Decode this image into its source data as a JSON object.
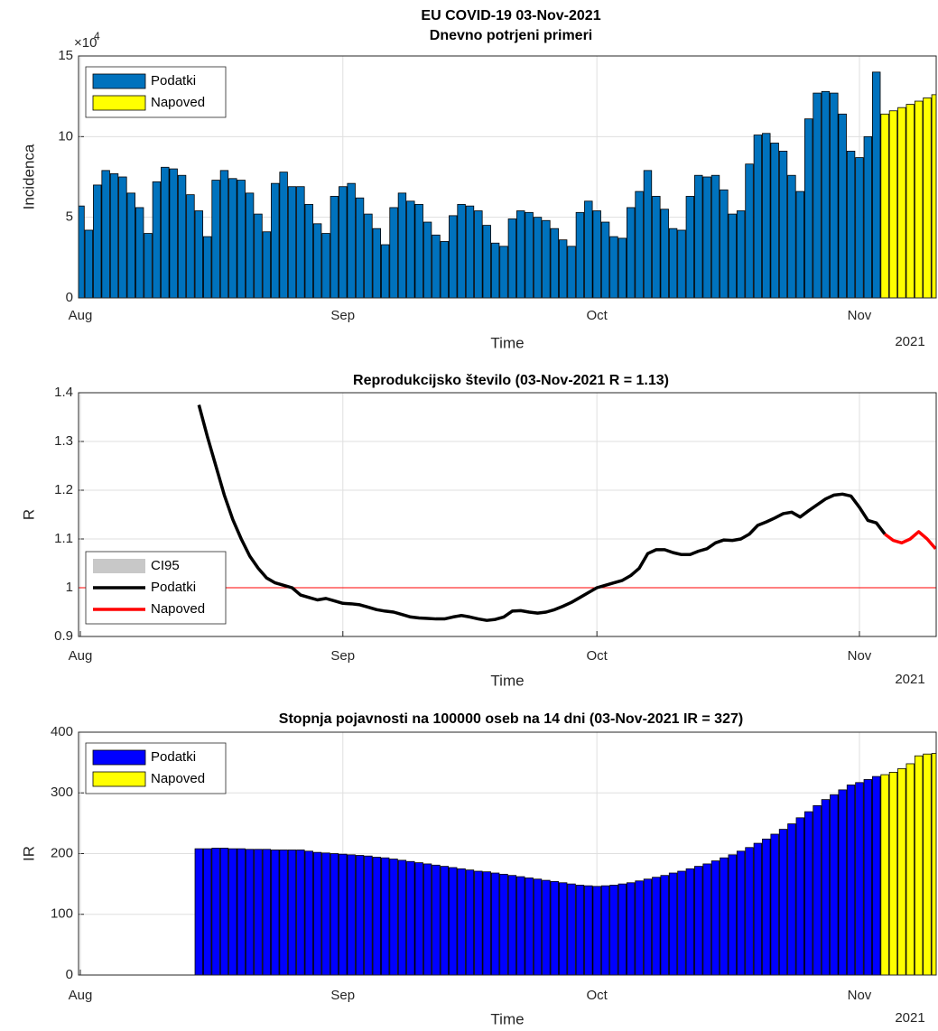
{
  "chart_data": [
    {
      "type": "bar",
      "title": "EU COVID-19 03-Nov-2021",
      "subtitle": "Dnevno potrjeni primeri",
      "xlabel": "Time",
      "ylabel": "Incidenca",
      "x_year": "2021",
      "y_exponent_base": "×10",
      "y_exponent": "4",
      "categories": [
        "Aug",
        null,
        null,
        null,
        null,
        null,
        null,
        null,
        null,
        null,
        null,
        null,
        null,
        null,
        null,
        null,
        null,
        null,
        null,
        null,
        null,
        null,
        null,
        null,
        null,
        null,
        null,
        null,
        null,
        null,
        null,
        "Sep",
        null,
        null,
        null,
        null,
        null,
        null,
        null,
        null,
        null,
        null,
        null,
        null,
        null,
        null,
        null,
        null,
        null,
        null,
        null,
        null,
        null,
        null,
        null,
        null,
        null,
        null,
        null,
        null,
        null,
        "Oct",
        null,
        null,
        null,
        null,
        null,
        null,
        null,
        null,
        null,
        null,
        null,
        null,
        null,
        null,
        null,
        null,
        null,
        null,
        null,
        null,
        null,
        null,
        null,
        null,
        null,
        null,
        null,
        null,
        null,
        null,
        "Nov",
        null,
        null,
        null,
        null,
        null,
        null,
        null,
        null,
        null
      ],
      "series": [
        {
          "name": "Podatki",
          "color": "#0072BD",
          "values": [
            5.7,
            4.2,
            7.0,
            7.9,
            7.7,
            7.5,
            6.5,
            5.6,
            4.0,
            7.2,
            8.1,
            8.0,
            7.6,
            6.4,
            5.4,
            3.8,
            7.3,
            7.9,
            7.4,
            7.3,
            6.5,
            5.2,
            4.1,
            7.1,
            7.8,
            6.9,
            6.9,
            5.8,
            4.6,
            4.0,
            6.3,
            6.9,
            7.1,
            6.2,
            5.2,
            4.3,
            3.3,
            5.6,
            6.5,
            6.0,
            5.8,
            4.7,
            3.9,
            3.5,
            5.1,
            5.8,
            5.7,
            5.4,
            4.5,
            3.4,
            3.2,
            4.9,
            5.4,
            5.3,
            5.0,
            4.8,
            4.3,
            3.6,
            3.2,
            5.3,
            6.0,
            5.4,
            4.7,
            3.8,
            3.7,
            5.6,
            6.6,
            7.9,
            6.3,
            5.5,
            4.3,
            4.2,
            6.3,
            7.6,
            7.5,
            7.6,
            6.7,
            5.2,
            5.4,
            8.3,
            10.1,
            10.2,
            9.6,
            9.1,
            7.6,
            6.6,
            11.1,
            12.7,
            12.8,
            12.7,
            11.4,
            9.1,
            8.7,
            10.0,
            14.0,
            null,
            null,
            null,
            null,
            null,
            null,
            null
          ]
        },
        {
          "name": "Napoved",
          "color": "#FFFF00",
          "values": [
            null,
            null,
            null,
            null,
            null,
            null,
            null,
            null,
            null,
            null,
            null,
            null,
            null,
            null,
            null,
            null,
            null,
            null,
            null,
            null,
            null,
            null,
            null,
            null,
            null,
            null,
            null,
            null,
            null,
            null,
            null,
            null,
            null,
            null,
            null,
            null,
            null,
            null,
            null,
            null,
            null,
            null,
            null,
            null,
            null,
            null,
            null,
            null,
            null,
            null,
            null,
            null,
            null,
            null,
            null,
            null,
            null,
            null,
            null,
            null,
            null,
            null,
            null,
            null,
            null,
            null,
            null,
            null,
            null,
            null,
            null,
            null,
            null,
            null,
            null,
            null,
            null,
            null,
            null,
            null,
            null,
            null,
            null,
            null,
            null,
            null,
            null,
            null,
            null,
            null,
            null,
            null,
            null,
            null,
            null,
            11.4,
            11.6,
            11.8,
            12.0,
            12.2,
            12.4,
            12.6
          ]
        }
      ],
      "ylim": [
        0,
        15
      ],
      "yticks": [
        0,
        5,
        10,
        15
      ],
      "grid": true,
      "legend": "northwest"
    },
    {
      "type": "line",
      "title": "Reprodukcijsko število (03-Nov-2021 R = 1.13)",
      "xlabel": "Time",
      "ylabel": "R",
      "x_year": "2021",
      "categories": [
        "Aug",
        null,
        null,
        null,
        null,
        null,
        null,
        null,
        null,
        null,
        null,
        null,
        null,
        null,
        null,
        null,
        null,
        null,
        null,
        null,
        null,
        null,
        null,
        null,
        null,
        null,
        null,
        null,
        null,
        null,
        null,
        "Sep",
        null,
        null,
        null,
        null,
        null,
        null,
        null,
        null,
        null,
        null,
        null,
        null,
        null,
        null,
        null,
        null,
        null,
        null,
        null,
        null,
        null,
        null,
        null,
        null,
        null,
        null,
        null,
        null,
        null,
        "Oct",
        null,
        null,
        null,
        null,
        null,
        null,
        null,
        null,
        null,
        null,
        null,
        null,
        null,
        null,
        null,
        null,
        null,
        null,
        null,
        null,
        null,
        null,
        null,
        null,
        null,
        null,
        null,
        null,
        null,
        null,
        "Nov",
        null,
        null,
        null,
        null,
        null,
        null,
        null,
        null,
        null
      ],
      "series": [
        {
          "name": "CI95",
          "color": "#C8C8C8",
          "style": "band"
        },
        {
          "name": "Podatki",
          "color": "#000000",
          "style": "line",
          "values": [
            null,
            null,
            null,
            null,
            null,
            null,
            null,
            null,
            null,
            null,
            null,
            null,
            null,
            null,
            1.375,
            1.31,
            1.25,
            1.19,
            1.14,
            1.1,
            1.065,
            1.04,
            1.02,
            1.01,
            1.005,
            1.0,
            0.985,
            0.98,
            0.975,
            0.978,
            0.973,
            0.968,
            0.967,
            0.965,
            0.96,
            0.955,
            0.952,
            0.95,
            0.945,
            0.94,
            0.938,
            0.937,
            0.936,
            0.936,
            0.94,
            0.943,
            0.94,
            0.936,
            0.933,
            0.935,
            0.94,
            0.952,
            0.953,
            0.95,
            0.948,
            0.95,
            0.955,
            0.962,
            0.97,
            0.98,
            0.99,
            1.0,
            1.005,
            1.01,
            1.015,
            1.025,
            1.04,
            1.07,
            1.078,
            1.078,
            1.072,
            1.068,
            1.068,
            1.075,
            1.08,
            1.092,
            1.098,
            1.097,
            1.1,
            1.11,
            1.128,
            1.135,
            1.143,
            1.152,
            1.155,
            1.145,
            1.158,
            1.17,
            1.182,
            1.19,
            1.192,
            1.188,
            1.165,
            1.138,
            1.133,
            1.11,
            null,
            null,
            null,
            null,
            null,
            null
          ]
        },
        {
          "name": "Napoved",
          "color": "#FF0000",
          "style": "line",
          "values": [
            null,
            null,
            null,
            null,
            null,
            null,
            null,
            null,
            null,
            null,
            null,
            null,
            null,
            null,
            null,
            null,
            null,
            null,
            null,
            null,
            null,
            null,
            null,
            null,
            null,
            null,
            null,
            null,
            null,
            null,
            null,
            null,
            null,
            null,
            null,
            null,
            null,
            null,
            null,
            null,
            null,
            null,
            null,
            null,
            null,
            null,
            null,
            null,
            null,
            null,
            null,
            null,
            null,
            null,
            null,
            null,
            null,
            null,
            null,
            null,
            null,
            null,
            null,
            null,
            null,
            null,
            null,
            null,
            null,
            null,
            null,
            null,
            null,
            null,
            null,
            null,
            null,
            null,
            null,
            null,
            null,
            null,
            null,
            null,
            null,
            null,
            null,
            null,
            null,
            null,
            null,
            null,
            null,
            null,
            null,
            1.11,
            1.097,
            1.092,
            1.1,
            1.115,
            1.1,
            1.08
          ]
        }
      ],
      "ref_line": {
        "value": 1,
        "color": "#FF0000"
      },
      "ylim": [
        0.9,
        1.4
      ],
      "yticks": [
        0.9,
        1,
        1.1,
        1.2,
        1.3,
        1.4
      ],
      "grid": true,
      "legend": "southwest"
    },
    {
      "type": "bar",
      "title": "Stopnja pojavnosti na 100000 oseb na 14 dni (03-Nov-2021 IR = 327)",
      "xlabel": "Time",
      "ylabel": "IR",
      "x_year": "2021",
      "categories": [
        "Aug",
        null,
        null,
        null,
        null,
        null,
        null,
        null,
        null,
        null,
        null,
        null,
        null,
        null,
        null,
        null,
        null,
        null,
        null,
        null,
        null,
        null,
        null,
        null,
        null,
        null,
        null,
        null,
        null,
        null,
        null,
        "Sep",
        null,
        null,
        null,
        null,
        null,
        null,
        null,
        null,
        null,
        null,
        null,
        null,
        null,
        null,
        null,
        null,
        null,
        null,
        null,
        null,
        null,
        null,
        null,
        null,
        null,
        null,
        null,
        null,
        null,
        "Oct",
        null,
        null,
        null,
        null,
        null,
        null,
        null,
        null,
        null,
        null,
        null,
        null,
        null,
        null,
        null,
        null,
        null,
        null,
        null,
        null,
        null,
        null,
        null,
        null,
        null,
        null,
        null,
        null,
        null,
        null,
        "Nov",
        null,
        null,
        null,
        null,
        null,
        null,
        null,
        null,
        null
      ],
      "series": [
        {
          "name": "Podatki",
          "color": "#0000FF",
          "values": [
            null,
            null,
            null,
            null,
            null,
            null,
            null,
            null,
            null,
            null,
            null,
            null,
            null,
            null,
            208,
            208,
            209,
            209,
            208,
            208,
            207,
            207,
            207,
            206,
            206,
            206,
            206,
            204,
            202,
            201,
            200,
            199,
            198,
            197,
            196,
            194,
            193,
            191,
            189,
            187,
            185,
            183,
            181,
            179,
            177,
            175,
            173,
            171,
            170,
            168,
            166,
            164,
            162,
            160,
            158,
            156,
            154,
            152,
            150,
            148,
            147,
            146,
            147,
            148,
            150,
            152,
            155,
            158,
            161,
            164,
            168,
            171,
            175,
            179,
            183,
            188,
            193,
            198,
            204,
            210,
            217,
            224,
            232,
            240,
            249,
            259,
            269,
            279,
            289,
            297,
            305,
            313,
            317,
            322,
            327,
            null,
            null,
            null,
            null,
            null,
            null,
            null
          ]
        },
        {
          "name": "Napoved",
          "color": "#FFFF00",
          "values": [
            null,
            null,
            null,
            null,
            null,
            null,
            null,
            null,
            null,
            null,
            null,
            null,
            null,
            null,
            null,
            null,
            null,
            null,
            null,
            null,
            null,
            null,
            null,
            null,
            null,
            null,
            null,
            null,
            null,
            null,
            null,
            null,
            null,
            null,
            null,
            null,
            null,
            null,
            null,
            null,
            null,
            null,
            null,
            null,
            null,
            null,
            null,
            null,
            null,
            null,
            null,
            null,
            null,
            null,
            null,
            null,
            null,
            null,
            null,
            null,
            null,
            null,
            null,
            null,
            null,
            null,
            null,
            null,
            null,
            null,
            null,
            null,
            null,
            null,
            null,
            null,
            null,
            null,
            null,
            null,
            null,
            null,
            null,
            null,
            null,
            null,
            null,
            null,
            null,
            null,
            null,
            null,
            null,
            null,
            null,
            330,
            334,
            340,
            348,
            361,
            364,
            365
          ]
        }
      ],
      "ylim": [
        0,
        400
      ],
      "yticks": [
        0,
        100,
        200,
        300,
        400
      ],
      "grid": true,
      "legend": "northwest"
    }
  ]
}
